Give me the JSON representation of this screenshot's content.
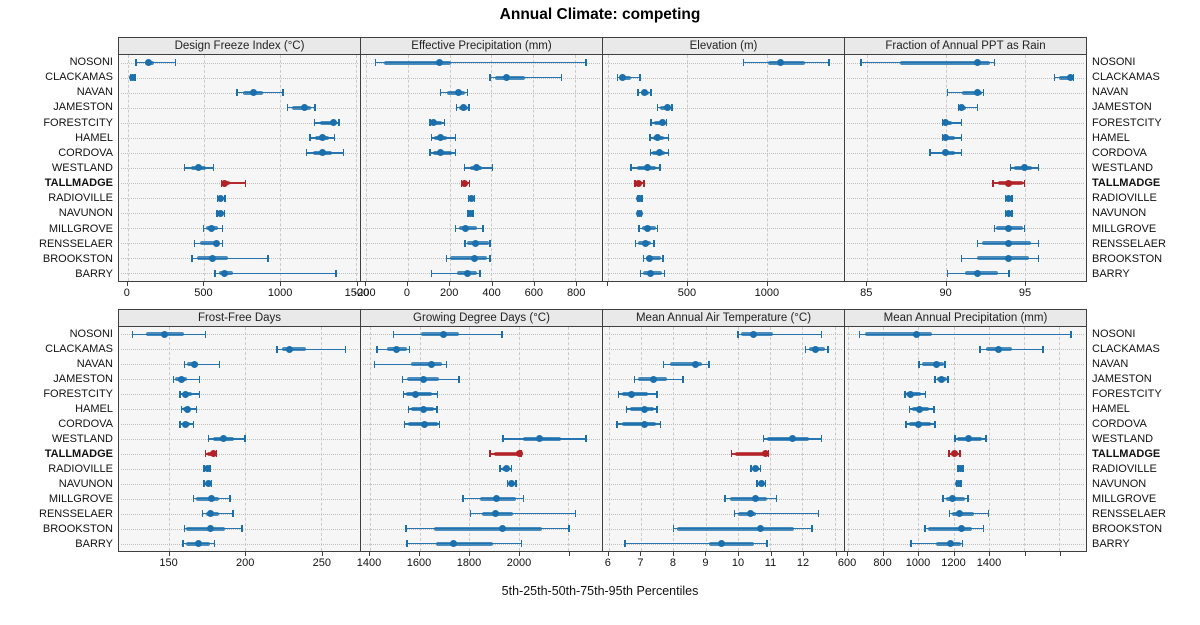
{
  "title": "Annual Climate: competing",
  "caption": "5th-25th-50th-75th-95th Percentiles",
  "percentiles": [
    "5th",
    "25th",
    "50th",
    "75th",
    "95th"
  ],
  "stations": [
    "NOSONI",
    "CLACKAMAS",
    "NAVAN",
    "JAMESTON",
    "FORESTCITY",
    "HAMEL",
    "CORDOVA",
    "WESTLAND",
    "TALLMADGE",
    "RADIOVILLE",
    "NAVUNON",
    "MILLGROVE",
    "RENSSELAER",
    "BROOKSTON",
    "BARRY"
  ],
  "highlight_station": "TALLMADGE",
  "colors": {
    "series": "#1b6fad",
    "highlight": "#b22126",
    "header_bg": "#e9e9e9",
    "plot_bg": "#f6f6f6",
    "border": "#3f3f3f",
    "grid": "#cacaca"
  },
  "layout": {
    "top_row_panels": [
      0,
      1,
      2,
      3
    ],
    "bottom_row_panels": [
      4,
      5,
      6,
      7
    ],
    "legend": "none",
    "grid": "dashed"
  },
  "chart_data": [
    {
      "type": "dotplot-percentiles",
      "id": "design-freeze-index",
      "title": "Design Freeze Index (°C)",
      "xlim": [
        -57,
        1527
      ],
      "ticks": [
        {
          "v": 0,
          "label": "0"
        },
        {
          "v": 500,
          "label": "500"
        },
        {
          "v": 1000,
          "label": "1000"
        },
        {
          "v": 1500,
          "label": "1500"
        }
      ],
      "series": [
        [
          55,
          115,
          140,
          175,
          315
        ],
        [
          18,
          25,
          32,
          40,
          48
        ],
        [
          717,
          756,
          825,
          890,
          1020
        ],
        [
          1050,
          1080,
          1165,
          1206,
          1230
        ],
        [
          1228,
          1262,
          1355,
          1370,
          1390
        ],
        [
          1200,
          1230,
          1280,
          1325,
          1360
        ],
        [
          1175,
          1215,
          1280,
          1345,
          1420
        ],
        [
          375,
          415,
          467,
          517,
          565
        ],
        [
          618,
          626,
          634,
          672,
          775
        ],
        [
          590,
          600,
          612,
          628,
          640
        ],
        [
          588,
          598,
          608,
          622,
          635
        ],
        [
          500,
          517,
          549,
          597,
          623
        ],
        [
          440,
          478,
          587,
          603,
          622
        ],
        [
          423,
          456,
          558,
          662,
          923
        ],
        [
          575,
          597,
          636,
          695,
          1368
        ]
      ]
    },
    {
      "type": "dotplot-percentiles",
      "id": "effective-precipitation",
      "title": "Effective Precipitation (mm)",
      "xlim": [
        -222,
        927
      ],
      "ticks": [
        {
          "v": -200,
          "label": "-200"
        },
        {
          "v": 0,
          "label": "0"
        },
        {
          "v": 200,
          "label": "200"
        },
        {
          "v": 400,
          "label": "400"
        },
        {
          "v": 600,
          "label": "600"
        },
        {
          "v": 800,
          "label": "800"
        }
      ],
      "series": [
        [
          -153,
          -110,
          150,
          205,
          850
        ],
        [
          394,
          418,
          473,
          559,
          733
        ],
        [
          158,
          190,
          244,
          276,
          285
        ],
        [
          233,
          245,
          268,
          287,
          292
        ],
        [
          107,
          113,
          123,
          165,
          176
        ],
        [
          113,
          126,
          157,
          186,
          228
        ],
        [
          107,
          123,
          155,
          211,
          228
        ],
        [
          271,
          299,
          331,
          355,
          406
        ],
        [
          258,
          265,
          273,
          285,
          295
        ],
        [
          290,
          297,
          303,
          310,
          318
        ],
        [
          287,
          293,
          299,
          306,
          313
        ],
        [
          228,
          244,
          276,
          331,
          359
        ],
        [
          273,
          284,
          323,
          386,
          394
        ],
        [
          186,
          202,
          320,
          380,
          394
        ],
        [
          113,
          236,
          284,
          330,
          345
        ]
      ]
    },
    {
      "type": "dotplot-percentiles",
      "id": "elevation",
      "title": "Elevation (m)",
      "xlim": [
        -31,
        1488
      ],
      "ticks": [
        {
          "v": 0,
          "label": ""
        },
        {
          "v": 500,
          "label": "500"
        },
        {
          "v": 1000,
          "label": "1000"
        }
      ],
      "series": [
        [
          856,
          1008,
          1087,
          1244,
          1394
        ],
        [
          61,
          71,
          92,
          144,
          202
        ],
        [
          190,
          206,
          233,
          258,
          270
        ],
        [
          314,
          331,
          373,
          398,
          404
        ],
        [
          273,
          290,
          342,
          363,
          369
        ],
        [
          264,
          286,
          311,
          352,
          383
        ],
        [
          269,
          280,
          325,
          363,
          383
        ],
        [
          144,
          181,
          248,
          300,
          327
        ],
        [
          172,
          180,
          190,
          215,
          228
        ],
        [
          190,
          196,
          202,
          209,
          215
        ],
        [
          188,
          193,
          198,
          205,
          212
        ],
        [
          196,
          217,
          248,
          300,
          314
        ],
        [
          175,
          189,
          238,
          270,
          289
        ],
        [
          223,
          238,
          264,
          335,
          348
        ],
        [
          206,
          223,
          269,
          342,
          356
        ]
      ]
    },
    {
      "type": "dotplot-percentiles",
      "id": "fraction-annual-ppt-as-rain",
      "title": "Fraction of Annual PPT as Rain",
      "xlim": [
        83.6,
        98.9
      ],
      "ticks": [
        {
          "v": 85,
          "label": "85"
        },
        {
          "v": 90,
          "label": "90"
        },
        {
          "v": 95,
          "label": "95"
        }
      ],
      "series": [
        [
          84.6,
          87.1,
          92.0,
          92.8,
          93.1
        ],
        [
          96.9,
          97.2,
          97.9,
          98.0,
          98.1
        ],
        [
          90.1,
          91.0,
          92.0,
          92.3,
          92.4
        ],
        [
          90.8,
          90.9,
          91.0,
          91.3,
          92.0
        ],
        [
          89.8,
          89.9,
          90.0,
          90.4,
          91.0
        ],
        [
          89.8,
          89.9,
          90.0,
          90.6,
          91.0
        ],
        [
          89.0,
          89.8,
          90.0,
          90.6,
          91.0
        ],
        [
          94.1,
          94.3,
          95.0,
          95.5,
          95.9
        ],
        [
          93.0,
          93.3,
          94.0,
          94.9,
          95.0
        ],
        [
          93.8,
          93.9,
          94.0,
          94.1,
          94.2
        ],
        [
          93.8,
          93.9,
          94.0,
          94.1,
          94.2
        ],
        [
          93.1,
          93.2,
          94.0,
          94.9,
          95.0
        ],
        [
          92.0,
          92.3,
          94.0,
          95.4,
          95.9
        ],
        [
          91.0,
          92.0,
          94.0,
          95.3,
          95.9
        ],
        [
          90.1,
          91.2,
          92.0,
          93.3,
          94.0
        ]
      ]
    },
    {
      "type": "dotplot-percentiles",
      "id": "frost-free-days",
      "title": "Frost-Free Days",
      "xlim": [
        117,
        275.6
      ],
      "ticks": [
        {
          "v": 150,
          "label": "150"
        },
        {
          "v": 200,
          "label": "200"
        },
        {
          "v": 250,
          "label": "250"
        }
      ],
      "series": [
        [
          126,
          135,
          147,
          160,
          174
        ],
        [
          221,
          224,
          229,
          240,
          266
        ],
        [
          160,
          162,
          167,
          169,
          183
        ],
        [
          153,
          154,
          158,
          162,
          170
        ],
        [
          157,
          159,
          161,
          165,
          170
        ],
        [
          158,
          159,
          162,
          164,
          168
        ],
        [
          157,
          159,
          161,
          164,
          166
        ],
        [
          176,
          179,
          186,
          193,
          200
        ],
        [
          174,
          175,
          179,
          180,
          181
        ],
        [
          173,
          174,
          175,
          176,
          177
        ],
        [
          173,
          174,
          176,
          177,
          178
        ],
        [
          166,
          168,
          178,
          183,
          190
        ],
        [
          172,
          174,
          177,
          183,
          192
        ],
        [
          160,
          161,
          177,
          187,
          198
        ],
        [
          159,
          161,
          169,
          177,
          180
        ]
      ]
    },
    {
      "type": "dotplot-percentiles",
      "id": "growing-degree-days",
      "title": "Growing Degree Days (°C)",
      "xlim": [
        1364,
        2336
      ],
      "ticks": [
        {
          "v": 1400,
          "label": "1400"
        },
        {
          "v": 1600,
          "label": "1600"
        },
        {
          "v": 1800,
          "label": "1800"
        },
        {
          "v": 2000,
          "label": "2000"
        },
        {
          "v": 2200,
          "label": ""
        }
      ],
      "series": [
        [
          1496,
          1605,
          1696,
          1759,
          1932
        ],
        [
          1428,
          1469,
          1508,
          1550,
          1560
        ],
        [
          1419,
          1565,
          1648,
          1692,
          1709
        ],
        [
          1532,
          1549,
          1615,
          1679,
          1759
        ],
        [
          1536,
          1545,
          1585,
          1650,
          1672
        ],
        [
          1555,
          1565,
          1615,
          1660,
          1670
        ],
        [
          1539,
          1553,
          1619,
          1675,
          1680
        ],
        [
          1936,
          2019,
          2083,
          2172,
          2272
        ],
        [
          1885,
          1900,
          2005,
          2008,
          2010
        ],
        [
          1925,
          1932,
          1949,
          1965,
          1972
        ],
        [
          1955,
          1962,
          1972,
          1982,
          1990
        ],
        [
          1776,
          1843,
          1909,
          1989,
          2019
        ],
        [
          1805,
          1852,
          1905,
          1979,
          2229
        ],
        [
          1545,
          1659,
          1936,
          2095,
          2203
        ],
        [
          1549,
          1665,
          1739,
          1896,
          2012
        ]
      ]
    },
    {
      "type": "dotplot-percentiles",
      "id": "mean-annual-air-temperature",
      "title": "Mean Annual Air Temperature (°C)",
      "xlim": [
        5.82,
        13.29
      ],
      "ticks": [
        {
          "v": 6,
          "label": "6"
        },
        {
          "v": 7,
          "label": "7"
        },
        {
          "v": 8,
          "label": "8"
        },
        {
          "v": 9,
          "label": "9"
        },
        {
          "v": 10,
          "label": "10"
        },
        {
          "v": 11,
          "label": "11"
        },
        {
          "v": 12,
          "label": "12"
        },
        {
          "v": 13,
          "label": ""
        }
      ],
      "series": [
        [
          10.0,
          10.1,
          10.5,
          11.1,
          12.6
        ],
        [
          12.1,
          12.2,
          12.4,
          12.7,
          12.8
        ],
        [
          7.7,
          7.9,
          8.7,
          8.9,
          9.1
        ],
        [
          6.8,
          6.9,
          7.4,
          7.8,
          8.3
        ],
        [
          6.3,
          6.4,
          6.7,
          7.2,
          7.5
        ],
        [
          6.55,
          6.65,
          7.1,
          7.4,
          7.5
        ],
        [
          6.25,
          6.4,
          7.1,
          7.45,
          7.6
        ],
        [
          10.8,
          10.9,
          11.7,
          12.2,
          12.6
        ],
        [
          9.8,
          9.9,
          10.85,
          10.9,
          10.95
        ],
        [
          10.4,
          10.45,
          10.55,
          10.65,
          10.7
        ],
        [
          10.6,
          10.65,
          10.72,
          10.8,
          10.85
        ],
        [
          9.6,
          9.75,
          10.55,
          10.9,
          11.2
        ],
        [
          9.9,
          10.0,
          10.4,
          10.55,
          12.5
        ],
        [
          8.0,
          8.1,
          10.7,
          11.75,
          12.3
        ],
        [
          6.5,
          9.1,
          9.5,
          10.5,
          10.9
        ]
      ]
    },
    {
      "type": "dotplot-percentiles",
      "id": "mean-annual-precipitation",
      "title": "Mean Annual Precipitation (mm)",
      "xlim": [
        583,
        1952
      ],
      "ticks": [
        {
          "v": 600,
          "label": "600"
        },
        {
          "v": 800,
          "label": "800"
        },
        {
          "v": 1000,
          "label": "1000"
        },
        {
          "v": 1200,
          "label": "1200"
        },
        {
          "v": 1400,
          "label": "1400"
        },
        {
          "v": 1600,
          "label": ""
        },
        {
          "v": 1800,
          "label": ""
        }
      ],
      "series": [
        [
          666,
          694,
          989,
          1079,
          1868
        ],
        [
          1351,
          1383,
          1455,
          1530,
          1708
        ],
        [
          1004,
          1023,
          1101,
          1145,
          1150
        ],
        [
          1094,
          1107,
          1130,
          1163,
          1169
        ],
        [
          925,
          932,
          957,
          1013,
          1041
        ],
        [
          948,
          966,
          1007,
          1060,
          1088
        ],
        [
          929,
          948,
          1000,
          1070,
          1094
        ],
        [
          1207,
          1220,
          1282,
          1360,
          1385
        ],
        [
          1175,
          1185,
          1207,
          1225,
          1235
        ],
        [
          1225,
          1232,
          1239,
          1246,
          1253
        ],
        [
          1217,
          1223,
          1229,
          1236,
          1242
        ],
        [
          1139,
          1154,
          1192,
          1267,
          1282
        ],
        [
          1176,
          1192,
          1233,
          1314,
          1398
        ],
        [
          1038,
          1056,
          1244,
          1304,
          1370
        ],
        [
          957,
          1098,
          1182,
          1244,
          1250
        ]
      ]
    }
  ]
}
